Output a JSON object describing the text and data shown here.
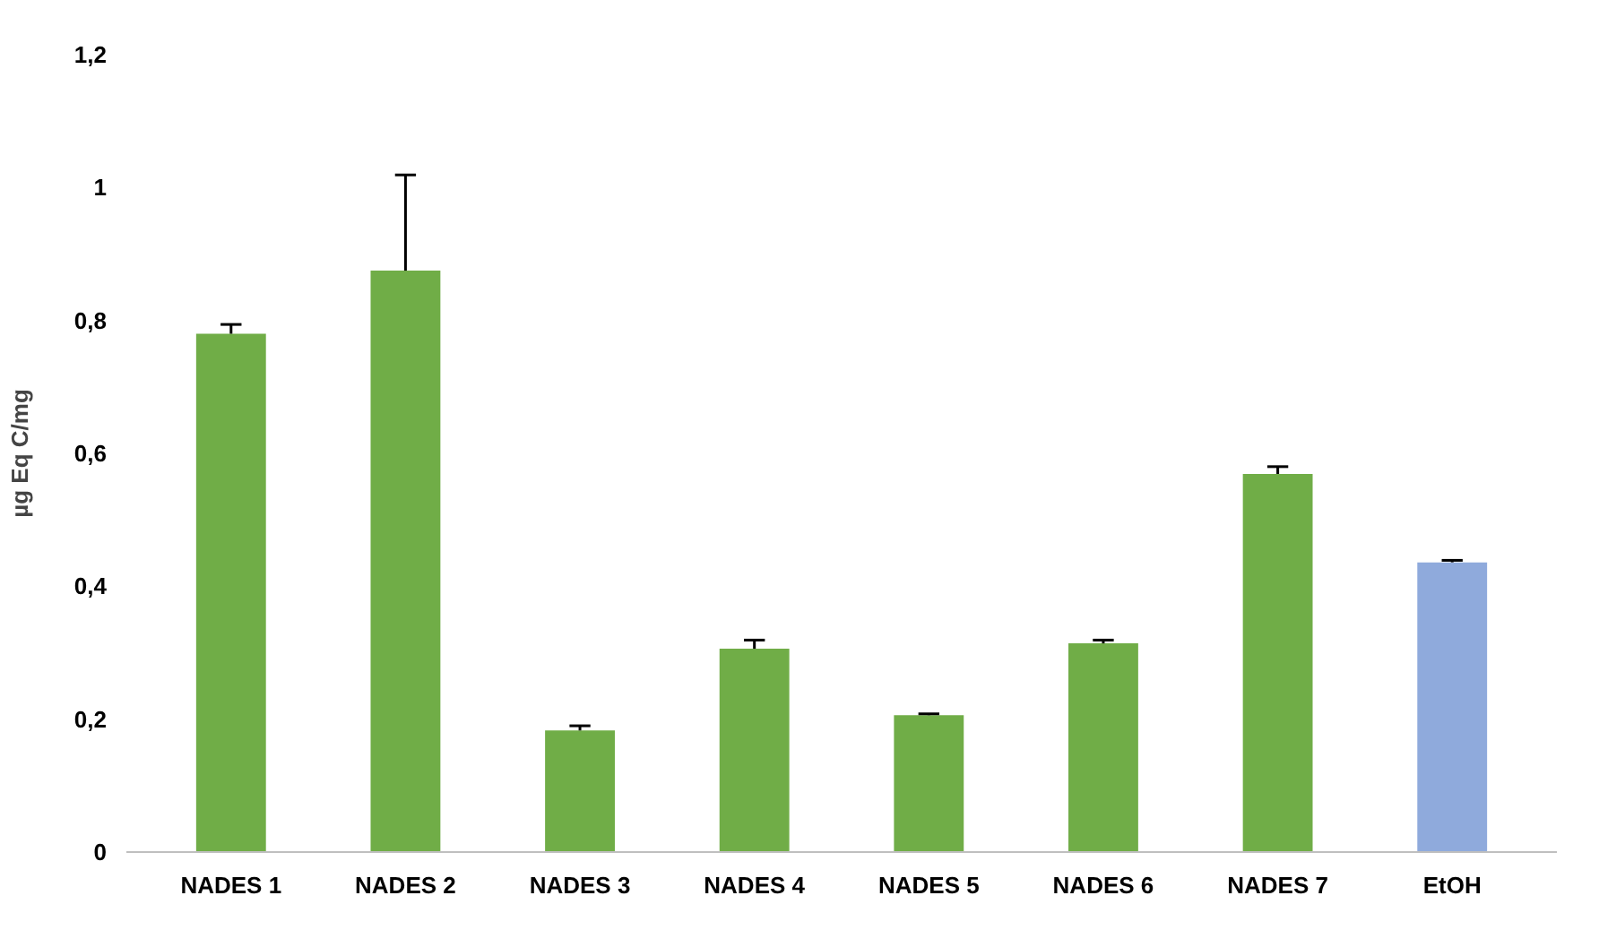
{
  "chart_data": {
    "type": "bar",
    "ylabel": "µg Eq C/mg",
    "categories": [
      "NADES 1",
      "NADES 2",
      "NADES 3",
      "NADES 4",
      "NADES 5",
      "NADES 6",
      "NADES 7",
      "EtOH"
    ],
    "values": [
      0.78,
      0.875,
      0.183,
      0.306,
      0.206,
      0.314,
      0.569,
      0.436
    ],
    "colors": [
      "#70ad47",
      "#70ad47",
      "#70ad47",
      "#70ad47",
      "#70ad47",
      "#70ad47",
      "#70ad47",
      "#8faadc"
    ],
    "errors": [
      [
        0.78,
        0.794
      ],
      [
        0.875,
        1.019
      ],
      [
        0.183,
        0.19
      ],
      [
        0.306,
        0.319
      ],
      [
        0.206,
        0.208
      ],
      [
        0.314,
        0.319
      ],
      [
        0.569,
        0.58
      ],
      [
        0.436,
        0.439
      ]
    ],
    "ylim": [
      0,
      1.2
    ],
    "yticks": [
      {
        "value": 0,
        "label": "0"
      },
      {
        "value": 0.2,
        "label": "0,2"
      },
      {
        "value": 0.4,
        "label": "0,4"
      },
      {
        "value": 0.6,
        "label": "0,6"
      },
      {
        "value": 0.8,
        "label": "0,8"
      },
      {
        "value": 1,
        "label": "1"
      },
      {
        "value": 1.2,
        "label": "1,2"
      }
    ],
    "grid": false
  }
}
